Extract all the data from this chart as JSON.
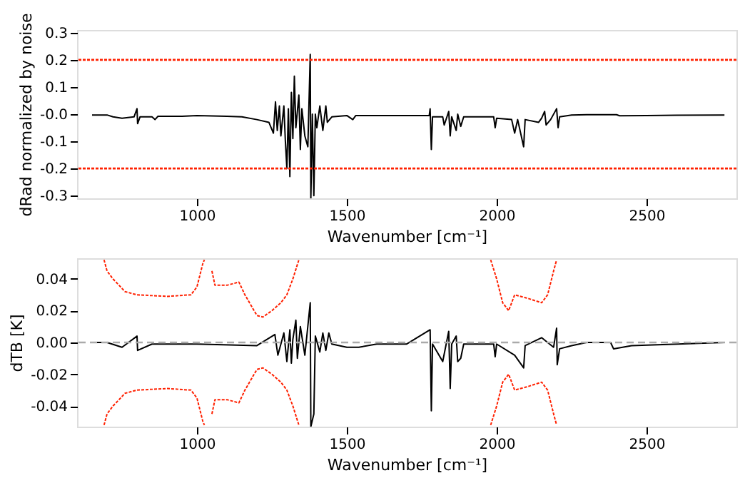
{
  "chart_data": [
    {
      "type": "line",
      "xlabel": "Wavenumber [cm⁻¹]",
      "ylabel": "dRad normalized by noise",
      "xlim": [
        600,
        2800
      ],
      "xticks": [
        1000,
        1500,
        2000,
        2500
      ],
      "ylim": [
        -0.31,
        0.31
      ],
      "yticks": [
        {
          "value": -0.3,
          "label": "-0.3"
        },
        {
          "value": -0.2,
          "label": "-0.2"
        },
        {
          "value": -0.1,
          "label": "-0.1"
        },
        {
          "value": 0,
          "label": "-0.0"
        },
        {
          "value": 0.1,
          "label": "0.1"
        },
        {
          "value": 0.2,
          "label": "0.2"
        },
        {
          "value": 0.3,
          "label": "0.3"
        }
      ],
      "grid": false,
      "legend": false,
      "ref_lines": [
        {
          "axis": "y",
          "value": 0.2,
          "color": "#ff2000",
          "line_style": "dotted"
        },
        {
          "axis": "y",
          "value": -0.2,
          "color": "#ff2000",
          "line_style": "dotted"
        }
      ],
      "series": [
        {
          "color": "#000000",
          "line_style": "solid",
          "x": [
            650,
            700,
            720,
            750,
            790,
            800,
            802,
            810,
            850,
            860,
            870,
            950,
            1000,
            1100,
            1150,
            1200,
            1240,
            1255,
            1262,
            1268,
            1275,
            1280,
            1290,
            1295,
            1300,
            1305,
            1310,
            1315,
            1320,
            1325,
            1330,
            1340,
            1345,
            1350,
            1360,
            1370,
            1378,
            1380,
            1385,
            1390,
            1395,
            1400,
            1410,
            1420,
            1430,
            1435,
            1450,
            1500,
            1520,
            1530,
            1600,
            1700,
            1775,
            1778,
            1782,
            1786,
            1820,
            1825,
            1840,
            1845,
            1850,
            1865,
            1870,
            1880,
            1890,
            1950,
            1990,
            1995,
            2000,
            2050,
            2060,
            2070,
            2090,
            2095,
            2140,
            2150,
            2160,
            2165,
            2180,
            2200,
            2205,
            2210,
            2250,
            2300,
            2400,
            2410,
            2500,
            2600,
            2760
          ],
          "values": [
            -0.003,
            -0.003,
            -0.01,
            -0.015,
            -0.01,
            0.02,
            -0.035,
            -0.01,
            -0.01,
            -0.02,
            -0.008,
            -0.008,
            -0.005,
            -0.008,
            -0.01,
            -0.02,
            -0.03,
            -0.07,
            0.045,
            -0.06,
            0.03,
            -0.08,
            0.03,
            -0.1,
            -0.2,
            0.02,
            -0.23,
            0.08,
            -0.09,
            0.14,
            -0.05,
            0.07,
            -0.13,
            0.02,
            -0.08,
            -0.12,
            0.22,
            -0.31,
            0.0,
            -0.3,
            0.0,
            -0.05,
            0.03,
            -0.06,
            0.03,
            -0.03,
            -0.01,
            -0.005,
            -0.02,
            -0.005,
            -0.005,
            -0.005,
            -0.005,
            0.02,
            -0.13,
            -0.01,
            -0.01,
            -0.04,
            0.01,
            -0.08,
            -0.01,
            -0.06,
            0.0,
            -0.045,
            -0.01,
            -0.01,
            -0.01,
            -0.05,
            -0.015,
            -0.02,
            -0.07,
            -0.02,
            -0.12,
            -0.02,
            -0.03,
            -0.015,
            0.01,
            -0.04,
            -0.02,
            0.02,
            -0.05,
            -0.01,
            -0.003,
            -0.002,
            -0.002,
            -0.006,
            -0.005,
            -0.004,
            -0.003
          ]
        }
      ]
    },
    {
      "type": "line",
      "xlabel": "Wavenumber [cm⁻¹]",
      "ylabel": "dTB [K]",
      "xlim": [
        600,
        2800
      ],
      "xticks": [
        1000,
        1500,
        2000,
        2500
      ],
      "ylim": [
        -0.053,
        0.053
      ],
      "yticks": [
        {
          "value": -0.04,
          "label": "-0.04"
        },
        {
          "value": -0.02,
          "label": "-0.02"
        },
        {
          "value": 0,
          "label": "0.00"
        },
        {
          "value": 0.02,
          "label": "0.02"
        },
        {
          "value": 0.04,
          "label": "0.04"
        }
      ],
      "grid": false,
      "legend": false,
      "ref_lines": [
        {
          "axis": "y",
          "value": 0,
          "color": "#aaaaaa",
          "line_style": "dashed"
        }
      ],
      "series": [
        {
          "color": "#ff2000",
          "line_style": "dotted",
          "x": [
            690,
            700,
            720,
            760,
            800,
            900,
            980,
            1000,
            1020,
            1025,
            1040,
            1050,
            1060,
            1100,
            1140,
            1160,
            1200,
            1220,
            1250,
            1280,
            1300,
            1320,
            1340,
            1400,
            1980,
            2000,
            2020,
            2040,
            2060,
            2100,
            2150,
            2170,
            2190,
            2200
          ],
          "values": [
            0.052,
            0.045,
            0.04,
            0.032,
            0.03,
            0.029,
            0.03,
            0.035,
            0.05,
            0.052,
            null,
            0.045,
            0.036,
            0.036,
            0.038,
            0.03,
            0.017,
            0.016,
            0.02,
            0.025,
            0.03,
            0.04,
            0.052,
            null,
            0.052,
            0.04,
            0.025,
            0.02,
            0.03,
            0.028,
            0.025,
            0.03,
            0.045,
            0.052
          ]
        },
        {
          "color": "#ff2000",
          "line_style": "dotted",
          "x": [
            690,
            700,
            720,
            760,
            800,
            900,
            980,
            1000,
            1020,
            1025,
            1040,
            1050,
            1060,
            1100,
            1140,
            1160,
            1200,
            1220,
            1250,
            1280,
            1300,
            1320,
            1340,
            1400,
            1980,
            2000,
            2020,
            2040,
            2060,
            2100,
            2150,
            2170,
            2190,
            2200
          ],
          "values": [
            -0.052,
            -0.045,
            -0.04,
            -0.032,
            -0.03,
            -0.029,
            -0.03,
            -0.035,
            -0.05,
            -0.052,
            null,
            -0.045,
            -0.036,
            -0.036,
            -0.038,
            -0.03,
            -0.017,
            -0.016,
            -0.02,
            -0.025,
            -0.03,
            -0.04,
            -0.052,
            null,
            -0.052,
            -0.04,
            -0.025,
            -0.02,
            -0.03,
            -0.028,
            -0.025,
            -0.03,
            -0.045,
            -0.052
          ]
        },
        {
          "color": "#000000",
          "line_style": "solid",
          "x": [
            650,
            700,
            750,
            800,
            802,
            850,
            1000,
            1200,
            1260,
            1270,
            1290,
            1300,
            1310,
            1315,
            1320,
            1330,
            1335,
            1345,
            1360,
            1378,
            1380,
            1390,
            1395,
            1410,
            1420,
            1430,
            1440,
            1450,
            1500,
            1540,
            1600,
            1700,
            1778,
            1782,
            1786,
            1820,
            1840,
            1845,
            1850,
            1865,
            1870,
            1880,
            1890,
            1990,
            1995,
            2000,
            2060,
            2090,
            2095,
            2150,
            2190,
            2200,
            2202,
            2210,
            2250,
            2300,
            2380,
            2390,
            2450,
            2760
          ],
          "values": [
            0.0,
            0.0,
            -0.003,
            0.004,
            -0.005,
            -0.001,
            -0.001,
            -0.002,
            0.005,
            -0.008,
            0.006,
            -0.012,
            0.008,
            -0.013,
            0.002,
            0.014,
            -0.01,
            0.01,
            -0.008,
            0.025,
            -0.053,
            -0.045,
            0.004,
            -0.006,
            0.006,
            -0.005,
            0.006,
            -0.001,
            -0.003,
            -0.003,
            -0.001,
            -0.001,
            0.008,
            -0.043,
            -0.001,
            -0.012,
            0.007,
            -0.029,
            -0.001,
            0.004,
            -0.012,
            -0.01,
            -0.001,
            -0.001,
            -0.009,
            -0.001,
            -0.008,
            -0.016,
            -0.002,
            0.003,
            -0.003,
            0.009,
            -0.014,
            -0.004,
            -0.002,
            0.0,
            0.0,
            -0.004,
            -0.002,
            0.0
          ]
        }
      ]
    }
  ]
}
